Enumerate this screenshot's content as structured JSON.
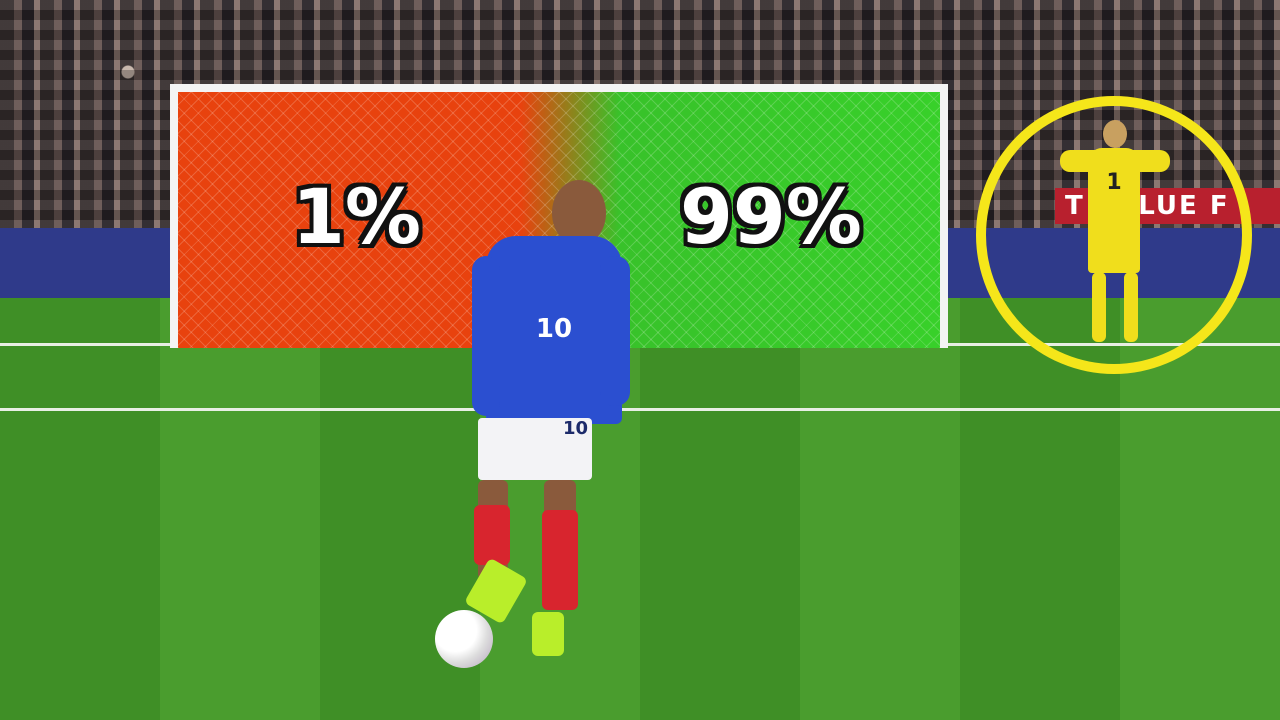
{
  "goal": {
    "left_percent": "1%",
    "right_percent": "99%",
    "left_color": "#e8420e",
    "right_color": "#38c22a"
  },
  "striker": {
    "jersey_number": "10",
    "shorts_number": "10",
    "kit_color": "#2b4fd0"
  },
  "goalkeeper": {
    "jersey_number": "1",
    "kit_color": "#f0de1c",
    "highlight_color": "#f5e61a"
  },
  "banner": {
    "text": "T VALUE F"
  }
}
